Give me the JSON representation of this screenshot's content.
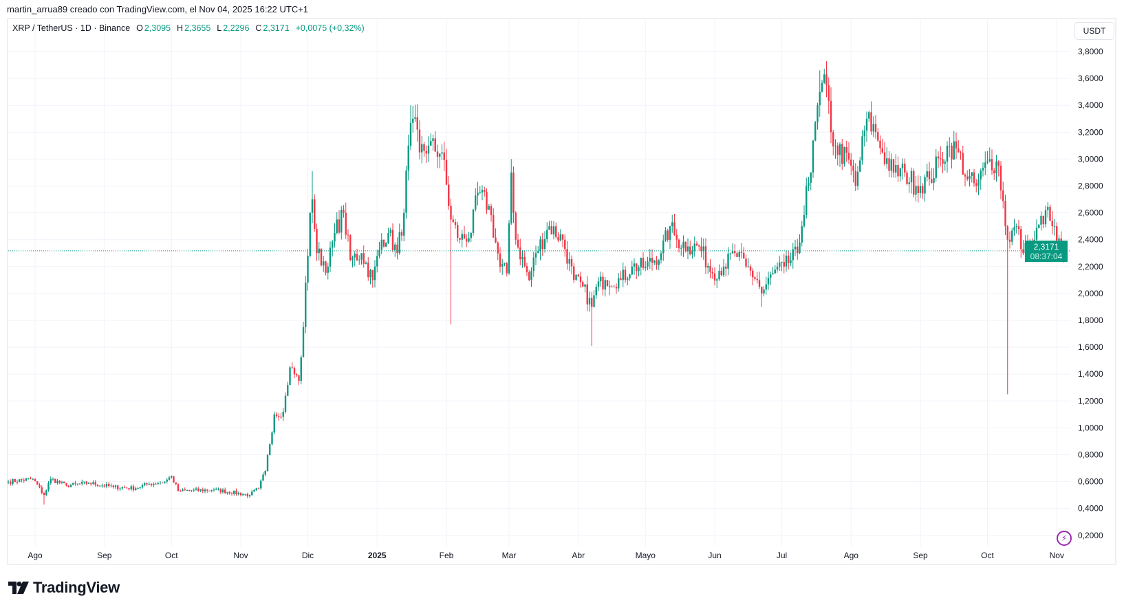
{
  "credit": "martin_arrua89 creado con TradingView.com, el Nov 04, 2025 16:22 UTC+1",
  "legend": {
    "symbol": "XRP / TetherUS · 1D · Binance",
    "o_label": "O",
    "o": "2,3095",
    "h_label": "H",
    "h": "2,3655",
    "l_label": "L",
    "l": "2,2296",
    "c_label": "C",
    "c": "2,3171",
    "change": "+0,0075 (+0,32%)"
  },
  "currency": "USDT",
  "last_price": {
    "value": "2,3171",
    "countdown": "08:37:04"
  },
  "logo_text": "TradingView",
  "colors": {
    "up": "#089981",
    "down": "#f23645",
    "grid": "#f0f3fa",
    "alert": "#9c27b0"
  },
  "icons": {
    "alert": "lightning-alert-icon",
    "logo": "tradingview-logo-icon"
  },
  "chart_data": {
    "type": "candlestick",
    "title": "XRP / TetherUS · 1D · Binance",
    "start_date": "2024-07-20",
    "end_date": "2025-11-04",
    "ylim": [
      0.1,
      3.9
    ],
    "y_ticks": [
      {
        "v": 3.8,
        "label": "3,8000"
      },
      {
        "v": 3.6,
        "label": "3,6000"
      },
      {
        "v": 3.4,
        "label": "3,4000"
      },
      {
        "v": 3.2,
        "label": "3,2000"
      },
      {
        "v": 3.0,
        "label": "3,0000"
      },
      {
        "v": 2.8,
        "label": "2,8000"
      },
      {
        "v": 2.6,
        "label": "2,6000"
      },
      {
        "v": 2.4,
        "label": "2,4000"
      },
      {
        "v": 2.2,
        "label": "2,2000"
      },
      {
        "v": 2.0,
        "label": "2,0000"
      },
      {
        "v": 1.8,
        "label": "1,8000"
      },
      {
        "v": 1.6,
        "label": "1,6000"
      },
      {
        "v": 1.4,
        "label": "1,4000"
      },
      {
        "v": 1.2,
        "label": "1,2000"
      },
      {
        "v": 1.0,
        "label": "1,0000"
      },
      {
        "v": 0.8,
        "label": "0,8000"
      },
      {
        "v": 0.6,
        "label": "0,6000"
      },
      {
        "v": 0.4,
        "label": "0,4000"
      },
      {
        "v": 0.2,
        "label": "0,2000"
      }
    ],
    "x_ticks": [
      {
        "date": "2024-08-01",
        "label": "Ago"
      },
      {
        "date": "2024-09-01",
        "label": "Sep"
      },
      {
        "date": "2024-10-01",
        "label": "Oct"
      },
      {
        "date": "2024-11-01",
        "label": "Nov"
      },
      {
        "date": "2024-12-01",
        "label": "Dic"
      },
      {
        "date": "2025-01-01",
        "label": "2025",
        "bold": true
      },
      {
        "date": "2025-02-01",
        "label": "Feb"
      },
      {
        "date": "2025-03-01",
        "label": "Mar"
      },
      {
        "date": "2025-04-01",
        "label": "Abr"
      },
      {
        "date": "2025-05-01",
        "label": "Mayo"
      },
      {
        "date": "2025-06-01",
        "label": "Jun"
      },
      {
        "date": "2025-07-01",
        "label": "Jul"
      },
      {
        "date": "2025-08-01",
        "label": "Ago"
      },
      {
        "date": "2025-09-01",
        "label": "Sep"
      },
      {
        "date": "2025-10-01",
        "label": "Oct"
      },
      {
        "date": "2025-11-01",
        "label": "Nov"
      }
    ],
    "close_anchors": [
      [
        "2024-07-20",
        0.6
      ],
      [
        "2024-07-31",
        0.62
      ],
      [
        "2024-08-05",
        0.5
      ],
      [
        "2024-08-08",
        0.62
      ],
      [
        "2024-08-15",
        0.57
      ],
      [
        "2024-08-25",
        0.59
      ],
      [
        "2024-09-05",
        0.56
      ],
      [
        "2024-09-15",
        0.55
      ],
      [
        "2024-09-20",
        0.58
      ],
      [
        "2024-09-28",
        0.6
      ],
      [
        "2024-10-01",
        0.64
      ],
      [
        "2024-10-04",
        0.53
      ],
      [
        "2024-10-20",
        0.54
      ],
      [
        "2024-11-05",
        0.5
      ],
      [
        "2024-11-09",
        0.55
      ],
      [
        "2024-11-12",
        0.68
      ],
      [
        "2024-11-16",
        1.1
      ],
      [
        "2024-11-20",
        1.12
      ],
      [
        "2024-11-23",
        1.45
      ],
      [
        "2024-11-27",
        1.35
      ],
      [
        "2024-11-29",
        1.75
      ],
      [
        "2024-12-02",
        2.6
      ],
      [
        "2024-12-03",
        2.7
      ],
      [
        "2024-12-05",
        2.3
      ],
      [
        "2024-12-10",
        2.2
      ],
      [
        "2024-12-13",
        2.45
      ],
      [
        "2024-12-17",
        2.6
      ],
      [
        "2024-12-20",
        2.25
      ],
      [
        "2024-12-25",
        2.3
      ],
      [
        "2024-12-30",
        2.1
      ],
      [
        "2025-01-03",
        2.4
      ],
      [
        "2025-01-06",
        2.45
      ],
      [
        "2025-01-10",
        2.3
      ],
      [
        "2025-01-13",
        2.6
      ],
      [
        "2025-01-15",
        3.1
      ],
      [
        "2025-01-17",
        3.3
      ],
      [
        "2025-01-20",
        3.05
      ],
      [
        "2025-01-24",
        3.1
      ],
      [
        "2025-01-30",
        3.05
      ],
      [
        "2025-02-03",
        2.55
      ],
      [
        "2025-02-07",
        2.4
      ],
      [
        "2025-02-12",
        2.45
      ],
      [
        "2025-02-15",
        2.75
      ],
      [
        "2025-02-20",
        2.65
      ],
      [
        "2025-02-25",
        2.2
      ],
      [
        "2025-02-28",
        2.15
      ],
      [
        "2025-03-02",
        2.9
      ],
      [
        "2025-03-04",
        2.4
      ],
      [
        "2025-03-10",
        2.1
      ],
      [
        "2025-03-13",
        2.3
      ],
      [
        "2025-03-19",
        2.5
      ],
      [
        "2025-03-25",
        2.4
      ],
      [
        "2025-03-30",
        2.1
      ],
      [
        "2025-04-03",
        2.05
      ],
      [
        "2025-04-07",
        1.9
      ],
      [
        "2025-04-09",
        2.05
      ],
      [
        "2025-04-13",
        2.1
      ],
      [
        "2025-04-20",
        2.1
      ],
      [
        "2025-04-25",
        2.2
      ],
      [
        "2025-05-01",
        2.2
      ],
      [
        "2025-05-08",
        2.3
      ],
      [
        "2025-05-12",
        2.5
      ],
      [
        "2025-05-15",
        2.4
      ],
      [
        "2025-05-20",
        2.35
      ],
      [
        "2025-05-25",
        2.35
      ],
      [
        "2025-05-31",
        2.15
      ],
      [
        "2025-06-05",
        2.2
      ],
      [
        "2025-06-10",
        2.3
      ],
      [
        "2025-06-15",
        2.2
      ],
      [
        "2025-06-20",
        2.1
      ],
      [
        "2025-06-22",
        2.0
      ],
      [
        "2025-06-27",
        2.15
      ],
      [
        "2025-07-02",
        2.2
      ],
      [
        "2025-07-08",
        2.3
      ],
      [
        "2025-07-10",
        2.5
      ],
      [
        "2025-07-12",
        2.8
      ],
      [
        "2025-07-14",
        2.9
      ],
      [
        "2025-07-17",
        3.4
      ],
      [
        "2025-07-18",
        3.5
      ],
      [
        "2025-07-21",
        3.55
      ],
      [
        "2025-07-23",
        3.2
      ],
      [
        "2025-07-25",
        3.1
      ],
      [
        "2025-08-01",
        2.95
      ],
      [
        "2025-08-03",
        2.8
      ],
      [
        "2025-08-08",
        3.3
      ],
      [
        "2025-08-12",
        3.2
      ],
      [
        "2025-08-15",
        3.05
      ],
      [
        "2025-08-20",
        2.9
      ],
      [
        "2025-08-25",
        2.9
      ],
      [
        "2025-08-30",
        2.8
      ],
      [
        "2025-09-05",
        2.85
      ],
      [
        "2025-09-10",
        3.0
      ],
      [
        "2025-09-14",
        3.1
      ],
      [
        "2025-09-18",
        3.05
      ],
      [
        "2025-09-22",
        2.85
      ],
      [
        "2025-09-26",
        2.8
      ],
      [
        "2025-10-02",
        3.0
      ],
      [
        "2025-10-06",
        2.95
      ],
      [
        "2025-10-10",
        2.4
      ],
      [
        "2025-10-14",
        2.5
      ],
      [
        "2025-10-17",
        2.3
      ],
      [
        "2025-10-22",
        2.4
      ],
      [
        "2025-10-27",
        2.62
      ],
      [
        "2025-10-30",
        2.5
      ],
      [
        "2025-11-03",
        2.31
      ],
      [
        "2025-11-04",
        2.3171
      ]
    ],
    "notable_lows": [
      [
        "2024-08-05",
        0.43
      ],
      [
        "2025-02-03",
        1.77
      ],
      [
        "2025-04-07",
        1.61
      ],
      [
        "2025-06-22",
        1.9
      ],
      [
        "2025-10-10",
        1.25
      ]
    ],
    "notable_highs": [
      [
        "2024-12-03",
        2.91
      ],
      [
        "2025-01-16",
        3.4
      ],
      [
        "2025-03-02",
        3.0
      ],
      [
        "2025-07-18",
        3.66
      ]
    ],
    "last_close": 2.3171
  }
}
